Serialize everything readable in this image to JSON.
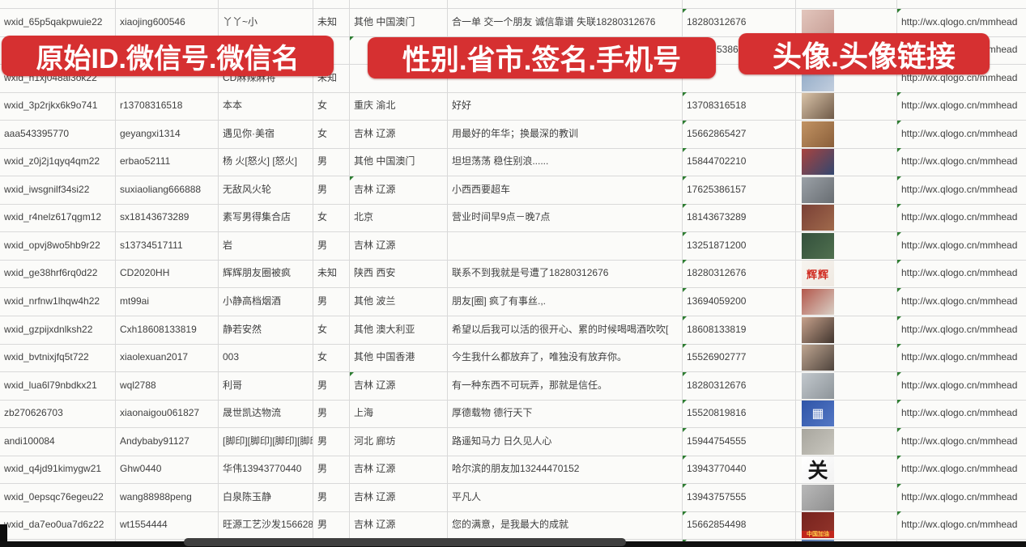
{
  "banners": [
    {
      "label": "原始ID.微信号.微信名"
    },
    {
      "label": "性别.省市.签名.手机号"
    },
    {
      "label": "头像.头像链接"
    }
  ],
  "accent_colors": {
    "banner_red": "#d63031",
    "cell_flag_green": "#2e7d32"
  },
  "rows": [
    {
      "variant": "partial-top",
      "id": "",
      "wechat_id": "",
      "name": "",
      "gender": "",
      "location": "",
      "signature": "",
      "phone": "",
      "url": "",
      "avatar": null
    },
    {
      "variant": "",
      "id": "wxid_65p5qakpwuie22",
      "wechat_id": "xiaojing600546",
      "name": "丫丫~小",
      "gender": "未知",
      "location": "其他 中国澳门",
      "signature": "合一单 交一个朋友 诚信靠谱 失联18280312676",
      "phone": "18280312676",
      "url": "http://wx.qlogo.cn/mmhead",
      "phone_tri": true,
      "url_tri": true,
      "avatar": {
        "c1": "#e3c6bd",
        "c2": "#c79f96",
        "label": "",
        "variant": ""
      }
    },
    {
      "variant": "hidden",
      "id": "",
      "wechat_id": "",
      "name": "",
      "gender": "",
      "location": "",
      "signature": "",
      "phone": "5386",
      "url": "http://wx.qlogo.cn/mmhead",
      "loc_tri": true,
      "url_tri": true,
      "avatar": {
        "c1": "#6b86bb",
        "c2": "#92a7cf",
        "label": "",
        "variant": ""
      }
    },
    {
      "variant": "",
      "id": "wxid_h1xj048al3ok22",
      "wechat_id": "",
      "name": "CD麻辣麻将",
      "gender": "未知",
      "location": "",
      "signature": "",
      "phone": "",
      "url": "http://wx.qlogo.cn/mmhead",
      "url_tri": true,
      "avatar": {
        "c1": "#8fa9c6",
        "c2": "#c2cede",
        "label": "",
        "variant": ""
      }
    },
    {
      "variant": "",
      "id": "wxid_3p2rjkx6k9o741",
      "wechat_id": "r13708316518",
      "name": "本本",
      "gender": "女",
      "location": "重庆 渝北",
      "signature": "好好",
      "phone": "13708316518",
      "url": "http://wx.qlogo.cn/mmhead",
      "phone_tri": true,
      "url_tri": true,
      "avatar": {
        "c1": "#d9c3a8",
        "c2": "#6f5a48",
        "label": "",
        "variant": ""
      }
    },
    {
      "variant": "",
      "id": "aaa543395770",
      "wechat_id": "geyangxi1314",
      "name": "遇见你·美宿",
      "gender": "女",
      "location": "吉林 辽源",
      "signature": "用最好的年华；换最深的教训",
      "phone": "15662865427",
      "url": "http://wx.qlogo.cn/mmhead",
      "phone_tri": true,
      "url_tri": true,
      "avatar": {
        "c1": "#c29363",
        "c2": "#8a5f3a",
        "label": "",
        "variant": ""
      }
    },
    {
      "variant": "",
      "id": "wxid_z0j2j1qyq4qm22",
      "wechat_id": "erbao52111",
      "name": "杨 火[怒火] [怒火]",
      "gender": "男",
      "location": "其他 中国澳门",
      "signature": "坦坦荡荡 稳住别浪......",
      "phone": "15844702210",
      "url": "http://wx.qlogo.cn/mmhead",
      "phone_tri": true,
      "url_tri": true,
      "avatar": {
        "c1": "#a8433f",
        "c2": "#32476f",
        "label": "",
        "variant": ""
      }
    },
    {
      "variant": "",
      "id": "wxid_iwsgnilf34si22",
      "wechat_id": "suxiaoliang666888",
      "name": "无敌风火轮",
      "gender": "男",
      "location": "吉林 辽源",
      "signature": "小西西要超车",
      "phone": "17625386157",
      "url": "http://wx.qlogo.cn/mmhead",
      "phone_tri": true,
      "url_tri": true,
      "loc_tri": true,
      "avatar": {
        "c1": "#9ba1a7",
        "c2": "#686d72",
        "label": "",
        "variant": ""
      }
    },
    {
      "variant": "",
      "id": "wxid_r4nelz617qgm12",
      "wechat_id": "sx18143673289",
      "name": "素写男得集合店",
      "gender": "女",
      "location": "北京",
      "signature": "营业时间早9点－晚7点",
      "phone": "18143673289",
      "url": "http://wx.qlogo.cn/mmhead",
      "phone_tri": true,
      "url_tri": true,
      "avatar": {
        "c1": "#7a4036",
        "c2": "#a06a4c",
        "label": "",
        "variant": ""
      }
    },
    {
      "variant": "",
      "id": "wxid_opvj8wo5hb9r22",
      "wechat_id": "s13734517111",
      "name": "岩",
      "gender": "男",
      "location": "吉林 辽源",
      "signature": "",
      "phone": "13251871200",
      "url": "http://wx.qlogo.cn/mmhead",
      "phone_tri": true,
      "url_tri": true,
      "avatar": {
        "c1": "#33503c",
        "c2": "#50704f",
        "label": "",
        "variant": ""
      }
    },
    {
      "variant": "",
      "id": "wxid_ge38hrf6rq0d22",
      "wechat_id": "CD2020HH",
      "name": "辉辉朋友圈被疯",
      "gender": "未知",
      "location": "陕西 西安",
      "signature": "联系不到我就是号遭了18280312676",
      "phone": "18280312676",
      "url": "http://wx.qlogo.cn/mmhead",
      "phone_tri": true,
      "url_tri": true,
      "avatar": {
        "c1": "#f7f4ef",
        "c2": "#efe9e2",
        "label": "辉辉",
        "variant": "red-text"
      }
    },
    {
      "variant": "",
      "id": "wxid_nrfnw1lhqw4h22",
      "wechat_id": "mt99ai",
      "name": "小静高档烟酒",
      "gender": "男",
      "location": "其他 波兰",
      "signature": "朋友[圈] 疯了有事丝.,.",
      "phone": "13694059200",
      "url": "http://wx.qlogo.cn/mmhead",
      "phone_tri": true,
      "url_tri": true,
      "avatar": {
        "c1": "#b3584c",
        "c2": "#d9cfc5",
        "label": "",
        "variant": ""
      }
    },
    {
      "variant": "",
      "id": "wxid_gzpijxdnlksh22",
      "wechat_id": "Cxh18608133819",
      "name": "静若安然",
      "gender": "女",
      "location": "其他 澳大利亚",
      "signature": "希望以后我可以活的很开心、累的时候喝喝酒吹吹[",
      "phone": "18608133819",
      "url": "http://wx.qlogo.cn/mmhead",
      "phone_tri": true,
      "url_tri": true,
      "avatar": {
        "c1": "#c7a28c",
        "c2": "#41352e",
        "label": "",
        "variant": ""
      }
    },
    {
      "variant": "",
      "id": "wxid_bvtnixjfq5t722",
      "wechat_id": "xiaolexuan2017",
      "name": "003",
      "gender": "女",
      "location": "其他 中国香港",
      "signature": "今生我什么都放弃了，唯独没有放弃你。",
      "phone": "15526902777",
      "url": "http://wx.qlogo.cn/mmhead",
      "phone_tri": true,
      "url_tri": true,
      "avatar": {
        "c1": "#bfa691",
        "c2": "#4e433c",
        "label": "",
        "variant": ""
      }
    },
    {
      "variant": "",
      "id": "wxid_lua6l79nbdkx21",
      "wechat_id": "wql2788",
      "name": "利哥",
      "gender": "男",
      "location": "吉林 辽源",
      "signature": "有一种东西不可玩弄，那就是信任。",
      "phone": "18280312676",
      "url": "http://wx.qlogo.cn/mmhead",
      "phone_tri": true,
      "url_tri": true,
      "loc_tri": true,
      "avatar": {
        "c1": "#c2c8cd",
        "c2": "#8d9499",
        "label": "",
        "variant": ""
      }
    },
    {
      "variant": "",
      "id": "zb270626703",
      "wechat_id": "xiaonaigou061827",
      "name": "晟世凯达物流",
      "gender": "男",
      "location": "上海",
      "signature": "厚德载物 德行天下",
      "phone": "15520819816",
      "url": "http://wx.qlogo.cn/mmhead",
      "phone_tri": true,
      "url_tri": true,
      "avatar": {
        "c1": "#2f55a8",
        "c2": "#5377c4",
        "label": "▦",
        "variant": "qr"
      }
    },
    {
      "variant": "",
      "id": "andi100084",
      "wechat_id": "Andybaby91127",
      "name": "[脚印][脚印][脚印][脚印]",
      "gender": "男",
      "location": "河北 廊坊",
      "signature": "路遥知马力 日久见人心",
      "phone": "15944754555",
      "url": "http://wx.qlogo.cn/mmhead",
      "phone_tri": true,
      "url_tri": true,
      "avatar": {
        "c1": "#a8a69e",
        "c2": "#c9c7bf",
        "label": "",
        "variant": ""
      }
    },
    {
      "variant": "",
      "id": "wxid_q4jd91kimygw21",
      "wechat_id": "Ghw0440",
      "name": "华伟13943770440",
      "gender": "男",
      "location": "吉林 辽源",
      "signature": "哈尔滨的朋友加13244470152",
      "phone": "13943770440",
      "url": "http://wx.qlogo.cn/mmhead",
      "phone_tri": true,
      "url_tri": true,
      "avatar": {
        "c1": "#ffffff",
        "c2": "#f2f2f2",
        "label": "关",
        "variant": "black-text"
      }
    },
    {
      "variant": "",
      "id": "wxid_0epsqc76egeu22",
      "wechat_id": "wang88988peng",
      "name": "白泉陈玉静",
      "gender": "男",
      "location": "吉林 辽源",
      "signature": "平凡人",
      "phone": "13943757555",
      "url": "http://wx.qlogo.cn/mmhead",
      "phone_tri": true,
      "url_tri": true,
      "avatar": {
        "c1": "#b9b9b9",
        "c2": "#8f8f8f",
        "label": "",
        "variant": ""
      }
    },
    {
      "variant": "",
      "id": "wxid_da7eo0ua7d6z22",
      "wechat_id": "wt1554444",
      "name": "旺源工艺沙发15662854",
      "gender": "男",
      "location": "吉林 辽源",
      "signature": "您的满意，是我最大的成就",
      "phone": "15662854498",
      "url": "http://wx.qlogo.cn/mmhead",
      "phone_tri": true,
      "url_tri": true,
      "avatar": {
        "c1": "#77231e",
        "c2": "#93352b",
        "label": "中国加油",
        "variant": "gold-banner"
      }
    },
    {
      "variant": "partial-bottom",
      "id": "",
      "wechat_id": "",
      "name": "",
      "gender": "",
      "location": "",
      "signature": "",
      "phone": "",
      "url": "",
      "phone_tri": true,
      "avatar": {
        "c1": "#4f6fa8",
        "c2": "#7d9cc4",
        "label": "",
        "variant": ""
      }
    }
  ]
}
